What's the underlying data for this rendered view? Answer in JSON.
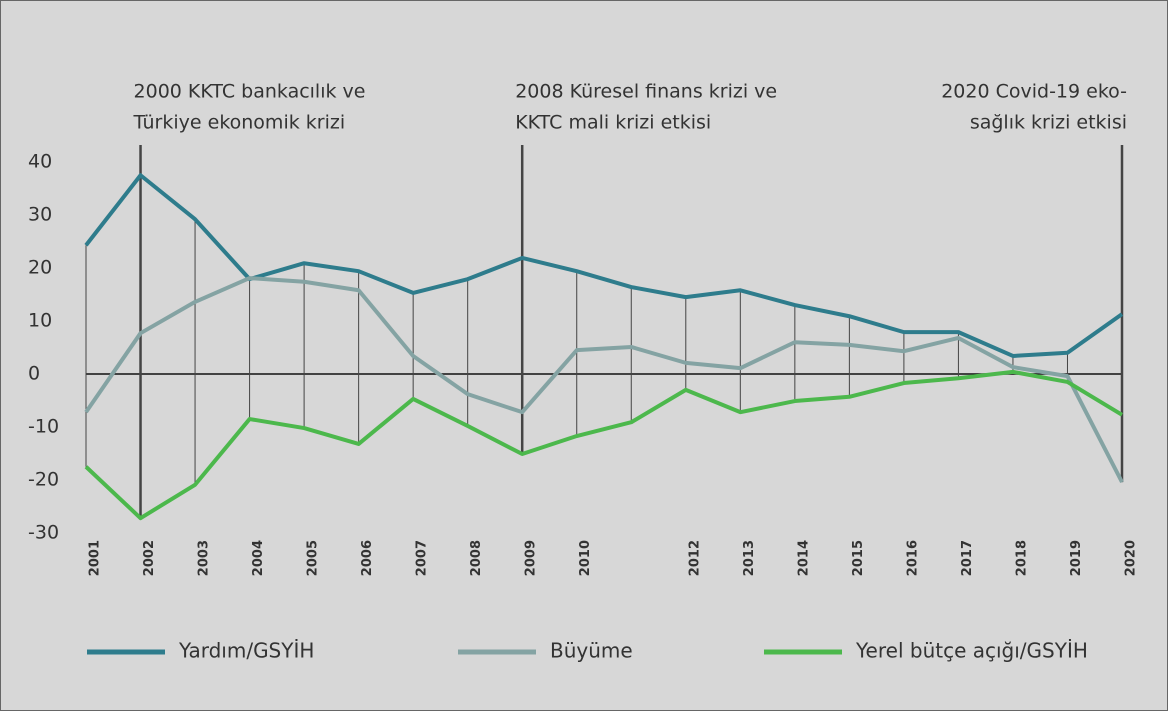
{
  "chart_data": {
    "type": "line",
    "categories": [
      "2001",
      "2002",
      "2003",
      "2004",
      "2005",
      "2006",
      "2007",
      "2008",
      "2009",
      "2010",
      null,
      "2012",
      "2013",
      "2014",
      "2015",
      "2016",
      "2017",
      "2018",
      "2019",
      "2020"
    ],
    "series": [
      {
        "name": "Yardım/GSYİH",
        "color": "#2e7c8c",
        "values": [
          24.3,
          37.5,
          29.2,
          17.9,
          20.9,
          19.4,
          15.3,
          17.9,
          21.9,
          19.4,
          16.4,
          14.5,
          15.8,
          13.0,
          10.9,
          7.9,
          7.9,
          3.4,
          4.0,
          11.3
        ]
      },
      {
        "name": "Büyüme",
        "color": "#84a3a3",
        "values": [
          -7.2,
          7.7,
          13.6,
          18.1,
          17.4,
          15.8,
          3.4,
          -3.8,
          -7.2,
          4.5,
          5.1,
          2.1,
          1.1,
          6.0,
          5.5,
          4.3,
          6.8,
          1.3,
          -0.4,
          -20.4
        ]
      },
      {
        "name": "Yerel bütçe açığı/GSYİH",
        "color": "#4cb84c",
        "values": [
          -17.5,
          -27.2,
          -20.9,
          -8.5,
          -10.2,
          -13.2,
          -4.7,
          -9.8,
          -15.1,
          -11.7,
          -9.1,
          -3.0,
          -7.2,
          -5.1,
          -4.3,
          -1.7,
          -0.8,
          0.4,
          -1.5,
          -7.7
        ]
      }
    ],
    "ylim": [
      -30,
      40
    ],
    "yticks": [
      -30,
      -20,
      -10,
      0,
      10,
      20,
      30,
      40
    ],
    "annotations": [
      {
        "x": "2002",
        "text": [
          "2000 KKTC bankacılık ve",
          "Türkiye ekonomik krizi"
        ],
        "align": "left"
      },
      {
        "x": "2009",
        "text": [
          "2008 Küresel finans krizi ve",
          "KKTC mali krizi etkisi"
        ],
        "align": "left"
      },
      {
        "x": "2020",
        "text": [
          "2020 Covid-19 eko-",
          "sağlık krizi etkisi"
        ],
        "align": "right"
      }
    ],
    "legend": "bottom"
  }
}
